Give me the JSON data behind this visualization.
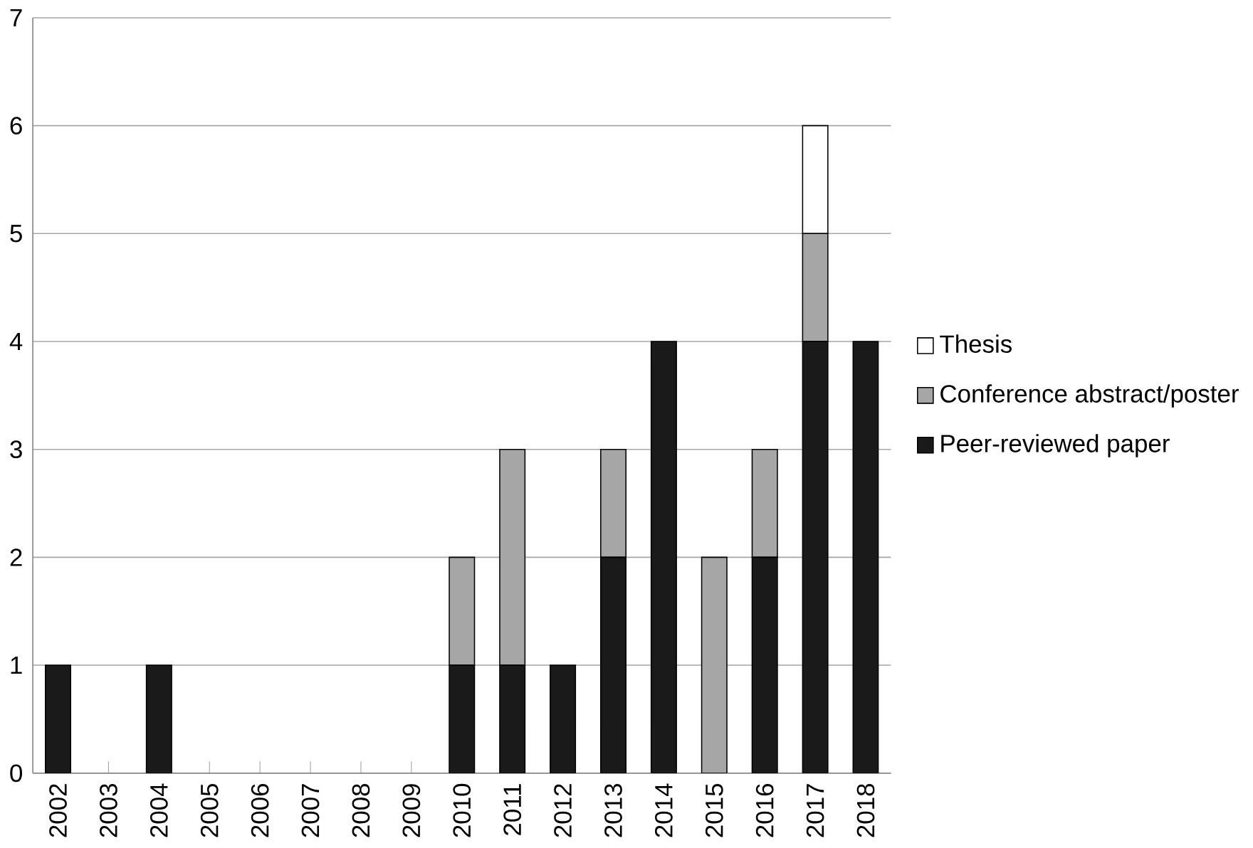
{
  "chart_data": {
    "type": "bar",
    "stacked": true,
    "categories": [
      "2002",
      "2003",
      "2004",
      "2005",
      "2006",
      "2007",
      "2008",
      "2009",
      "2010",
      "2011",
      "2012",
      "2013",
      "2014",
      "2015",
      "2016",
      "2017",
      "2018"
    ],
    "series": [
      {
        "name": "Peer-reviewed paper",
        "color": "#1a1a1a",
        "values": [
          1,
          0,
          1,
          0,
          0,
          0,
          0,
          0,
          1,
          1,
          1,
          2,
          4,
          0,
          2,
          4,
          4
        ]
      },
      {
        "name": "Conference abstract/poster",
        "color": "#a6a6a6",
        "values": [
          0,
          0,
          0,
          0,
          0,
          0,
          0,
          0,
          1,
          2,
          0,
          1,
          0,
          2,
          1,
          1,
          0
        ]
      },
      {
        "name": "Thesis",
        "color": "#ffffff",
        "values": [
          0,
          0,
          0,
          0,
          0,
          0,
          0,
          0,
          0,
          0,
          0,
          0,
          0,
          0,
          0,
          1,
          0
        ]
      }
    ],
    "ylim": [
      0,
      7
    ],
    "yticks": [
      0,
      1,
      2,
      3,
      4,
      5,
      6,
      7
    ],
    "grid": "y",
    "legend": "right"
  }
}
